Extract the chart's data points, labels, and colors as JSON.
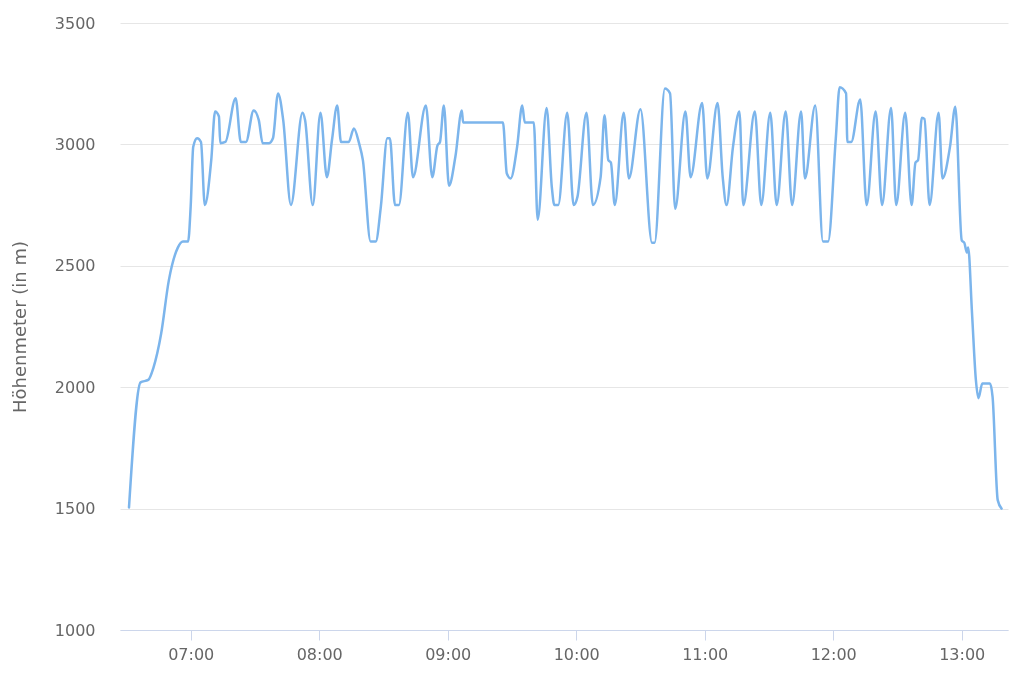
{
  "chart_data": {
    "type": "line",
    "ylabel": "Höhenmeter (in m)",
    "color": "#7cb5ec",
    "grid": "y",
    "marker": "none",
    "line_style": "solid",
    "xlim": [
      6.45,
      13.36
    ],
    "ylim": [
      1000,
      3500
    ],
    "yticks": [
      1000,
      1500,
      2000,
      2500,
      3000,
      3500
    ],
    "xticks": [
      {
        "value": 7,
        "label": "07:00"
      },
      {
        "value": 8,
        "label": "08:00"
      },
      {
        "value": 9,
        "label": "09:00"
      },
      {
        "value": 10,
        "label": "10:00"
      },
      {
        "value": 11,
        "label": "11:00"
      },
      {
        "value": 12,
        "label": "12:00"
      },
      {
        "value": 13,
        "label": "13:00"
      }
    ],
    "x": [
      6.52,
      6.61,
      6.67,
      6.71,
      6.77,
      6.83,
      6.9,
      6.94,
      6.98,
      7.0,
      7.02,
      7.05,
      7.08,
      7.11,
      7.16,
      7.19,
      7.22,
      7.23,
      7.27,
      7.35,
      7.39,
      7.43,
      7.49,
      7.53,
      7.56,
      7.61,
      7.64,
      7.68,
      7.72,
      7.78,
      7.87,
      7.89,
      7.95,
      8.01,
      8.06,
      8.1,
      8.14,
      8.17,
      8.23,
      8.27,
      8.31,
      8.34,
      8.4,
      8.44,
      8.48,
      8.53,
      8.55,
      8.59,
      8.62,
      8.69,
      8.73,
      8.83,
      8.88,
      8.92,
      8.94,
      8.97,
      9.01,
      9.06,
      9.11,
      9.12,
      9.43,
      9.46,
      9.49,
      9.54,
      9.58,
      9.6,
      9.67,
      9.7,
      9.77,
      9.81,
      9.83,
      9.86,
      9.93,
      9.98,
      10.01,
      10.08,
      10.13,
      10.19,
      10.22,
      10.25,
      10.27,
      10.3,
      10.37,
      10.41,
      10.5,
      10.59,
      10.61,
      10.69,
      10.73,
      10.77,
      10.85,
      10.89,
      10.98,
      11.02,
      11.1,
      11.14,
      11.17,
      11.22,
      11.27,
      11.3,
      11.39,
      11.44,
      11.51,
      11.56,
      11.63,
      11.68,
      11.75,
      11.78,
      11.86,
      11.92,
      11.96,
      12.02,
      12.05,
      12.1,
      12.11,
      12.14,
      12.21,
      12.26,
      12.33,
      12.38,
      12.45,
      12.49,
      12.56,
      12.61,
      12.64,
      12.66,
      12.69,
      12.71,
      12.75,
      12.82,
      12.85,
      12.91,
      12.95,
      13.0,
      13.02,
      13.04,
      13.05,
      13.08,
      13.11,
      13.13,
      13.16,
      13.22,
      13.24,
      13.28,
      13.31
    ],
    "values": [
      1505,
      2020,
      2030,
      2080,
      2220,
      2440,
      2575,
      2600,
      2600,
      2745,
      2990,
      3025,
      3010,
      2750,
      2935,
      3135,
      3115,
      3005,
      3010,
      3190,
      3010,
      3010,
      3140,
      3100,
      3005,
      3005,
      3025,
      3210,
      3100,
      2750,
      3130,
      3100,
      2750,
      3130,
      2865,
      3020,
      3160,
      3010,
      3010,
      3065,
      3005,
      2935,
      2600,
      2600,
      2745,
      3025,
      3025,
      2750,
      2750,
      3130,
      2865,
      3160,
      2865,
      2995,
      3010,
      3160,
      2830,
      2950,
      3140,
      3090,
      3090,
      2880,
      2860,
      2990,
      3160,
      3090,
      3090,
      2690,
      3150,
      2825,
      2750,
      2750,
      3130,
      2750,
      2785,
      3130,
      2750,
      2865,
      3120,
      2935,
      2925,
      2750,
      3130,
      2860,
      3145,
      2595,
      2595,
      3230,
      3210,
      2735,
      3135,
      2865,
      3170,
      2860,
      3170,
      2865,
      2750,
      2990,
      3135,
      2750,
      3135,
      2750,
      3130,
      2750,
      3135,
      2750,
      3135,
      2860,
      3160,
      2600,
      2600,
      3025,
      3235,
      3210,
      3010,
      3010,
      3185,
      2750,
      3135,
      2750,
      3150,
      2750,
      3130,
      2750,
      2925,
      2935,
      3110,
      3105,
      2750,
      3130,
      2860,
      2995,
      3155,
      2605,
      2595,
      2555,
      2575,
      2305,
      2030,
      1955,
      2015,
      2015,
      1960,
      1535,
      1500
    ]
  }
}
